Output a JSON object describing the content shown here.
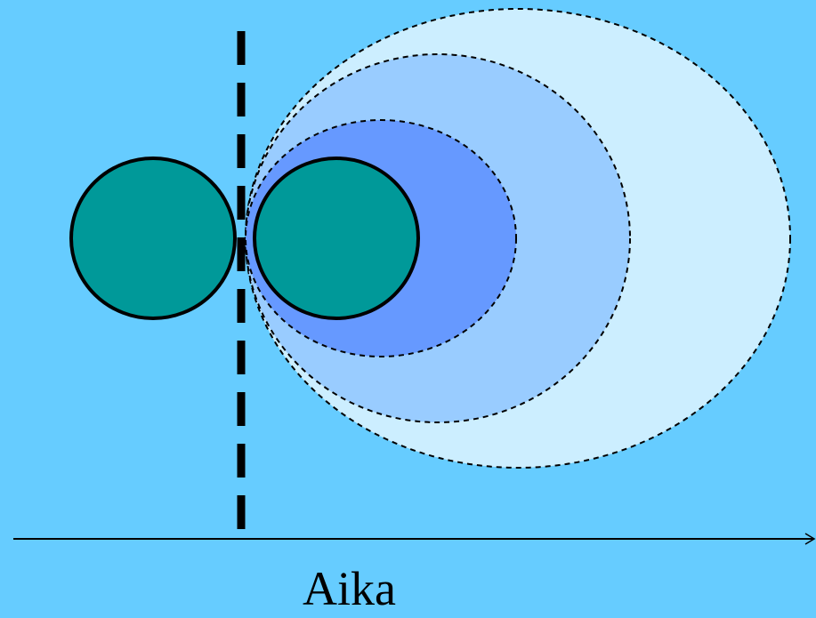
{
  "colors": {
    "background": "#66ccff",
    "outer_wave": "#cceeff",
    "middle_wave": "#99ccff",
    "inner_wave": "#6699ff",
    "body_fill": "#009999",
    "outline": "#000000"
  },
  "axis": {
    "label": "Aika"
  }
}
